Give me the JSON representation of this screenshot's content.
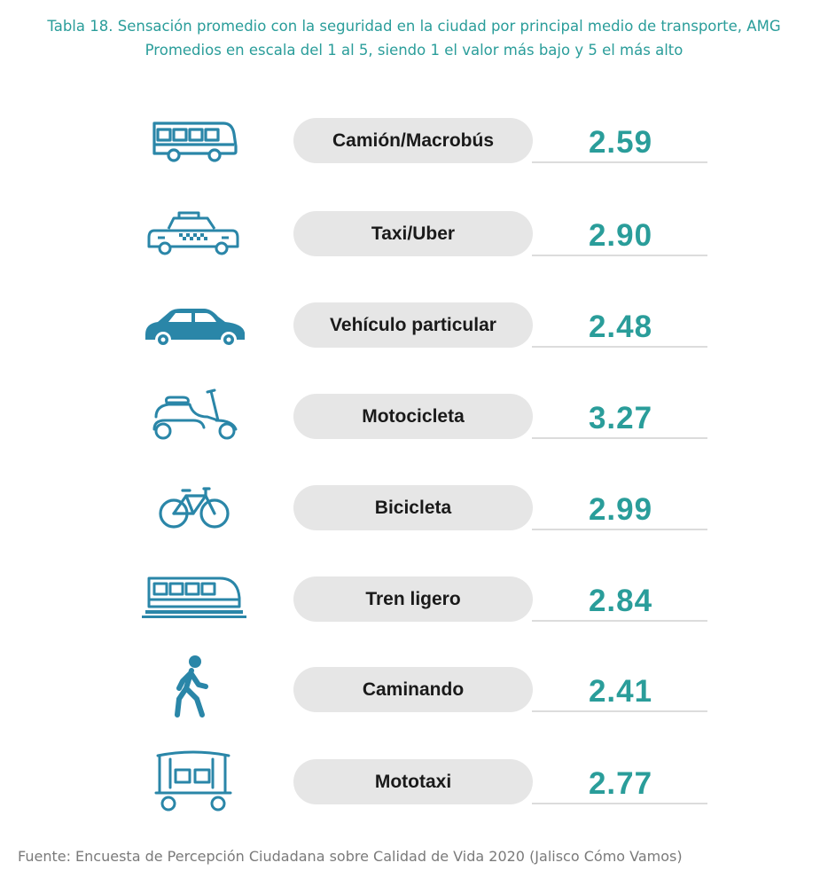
{
  "title": {
    "line1": "Tabla 18. Sensación promedio con la seguridad en la ciudad por principal medio de transporte, AMG",
    "line2": "Promedios en escala del 1 al 5, siendo 1 el valor más bajo y 5 el más alto"
  },
  "colors": {
    "accent": "#2a9d9a",
    "pill": "#e6e6e6"
  },
  "rows": [
    {
      "icon": "bus-icon",
      "label": "Camión/Macrobús",
      "value": "2.59"
    },
    {
      "icon": "taxi-icon",
      "label": "Taxi/Uber",
      "value": "2.90"
    },
    {
      "icon": "car-icon",
      "label": "Vehículo particular",
      "value": "2.48"
    },
    {
      "icon": "scooter-icon",
      "label": "Motocicleta",
      "value": "3.27"
    },
    {
      "icon": "bicycle-icon",
      "label": "Bicicleta",
      "value": "2.99"
    },
    {
      "icon": "train-icon",
      "label": "Tren ligero",
      "value": "2.84"
    },
    {
      "icon": "pedestrian-icon",
      "label": "Caminando",
      "value": "2.41"
    },
    {
      "icon": "mototaxi-icon",
      "label": "Mototaxi",
      "value": "2.77"
    }
  ],
  "source": "Fuente: Encuesta de Percepción Ciudadana sobre Calidad de Vida 2020 (Jalisco Cómo Vamos)"
}
